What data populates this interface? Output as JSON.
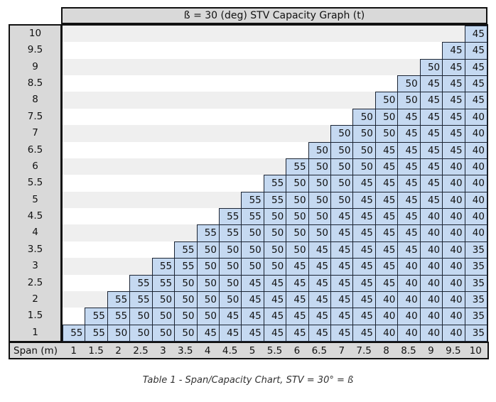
{
  "chart_data": {
    "type": "table",
    "title": "ß = 30 (deg) STV Capacity Graph (t)",
    "xlabel": "Span (m)",
    "x": [
      "1",
      "1.5",
      "2",
      "2.5",
      "3",
      "3.5",
      "4",
      "4.5",
      "5",
      "5.5",
      "6",
      "6.5",
      "7",
      "7.5",
      "8",
      "8.5",
      "9",
      "9.5",
      "10"
    ],
    "y": [
      "1",
      "1.5",
      "2",
      "2.5",
      "3",
      "3.5",
      "4",
      "4.5",
      "5",
      "5.5",
      "6",
      "6.5",
      "7",
      "7.5",
      "8",
      "8.5",
      "9",
      "9.5",
      "10"
    ],
    "note": "rows listed from height 1 upward; each row's values start at span equal to the row height and run to span 10",
    "rows": [
      [
        55,
        55,
        50,
        50,
        50,
        50,
        45,
        45,
        45,
        45,
        45,
        45,
        45,
        45,
        40,
        40,
        40,
        40,
        35
      ],
      [
        55,
        55,
        50,
        50,
        50,
        50,
        45,
        45,
        45,
        45,
        45,
        45,
        45,
        40,
        40,
        40,
        40,
        35
      ],
      [
        55,
        55,
        50,
        50,
        50,
        50,
        45,
        45,
        45,
        45,
        45,
        45,
        40,
        40,
        40,
        40,
        35
      ],
      [
        55,
        55,
        50,
        50,
        50,
        45,
        45,
        45,
        45,
        45,
        45,
        45,
        40,
        40,
        40,
        35
      ],
      [
        55,
        55,
        50,
        50,
        50,
        50,
        45,
        45,
        45,
        45,
        45,
        40,
        40,
        40,
        35
      ],
      [
        55,
        50,
        50,
        50,
        50,
        50,
        45,
        45,
        45,
        45,
        45,
        40,
        40,
        35
      ],
      [
        55,
        55,
        50,
        50,
        50,
        50,
        45,
        45,
        45,
        45,
        40,
        40,
        40
      ],
      [
        55,
        55,
        50,
        50,
        50,
        45,
        45,
        45,
        45,
        40,
        40,
        40
      ],
      [
        55,
        55,
        50,
        50,
        50,
        45,
        45,
        45,
        45,
        40,
        40
      ],
      [
        55,
        50,
        50,
        50,
        45,
        45,
        45,
        45,
        40,
        40
      ],
      [
        55,
        50,
        50,
        50,
        45,
        45,
        45,
        40,
        40
      ],
      [
        50,
        50,
        50,
        45,
        45,
        45,
        45,
        40
      ],
      [
        50,
        50,
        50,
        45,
        45,
        45,
        40
      ],
      [
        50,
        50,
        45,
        45,
        45,
        40
      ],
      [
        50,
        50,
        45,
        45,
        45
      ],
      [
        50,
        45,
        45,
        45
      ],
      [
        50,
        45,
        45
      ],
      [
        45,
        45
      ],
      [
        45
      ]
    ]
  },
  "caption": "Table 1 - Span/Capacity Chart, STV = 30° = ß"
}
